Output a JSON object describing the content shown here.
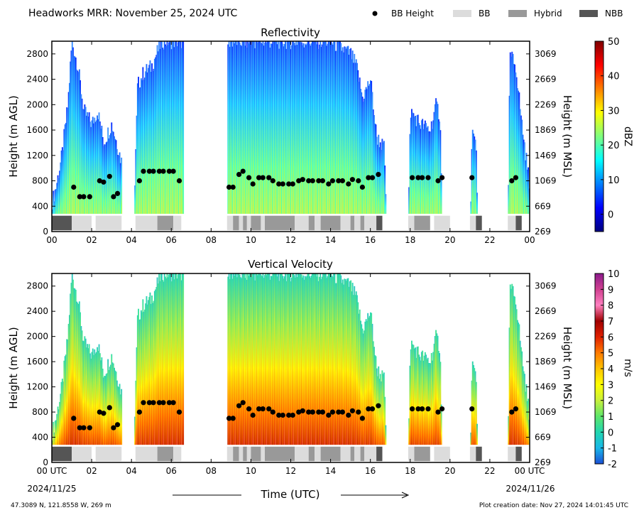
{
  "figure": {
    "title": "Headworks MRR:  November 25, 2024 UTC",
    "legend": [
      {
        "label": "BB Height",
        "kind": "marker",
        "color": "#000000"
      },
      {
        "label": "BB",
        "kind": "patch",
        "color": "#dcdcdc"
      },
      {
        "label": "Hybrid",
        "kind": "patch",
        "color": "#999999"
      },
      {
        "label": "NBB",
        "kind": "patch",
        "color": "#555555"
      }
    ],
    "xlabel": "Time (UTC)",
    "date_start": "2024/11/25",
    "date_end": "2024/11/26",
    "location": "47.3089 N, 121.8558 W, 269 m",
    "creation": "Plot creation date: Nov 27, 2024 14:01:45 UTC"
  },
  "chart_data": [
    {
      "type": "heatmap",
      "title": "Reflectivity",
      "ylabel": "Height (m AGL)",
      "ylabel_right": "Height (m MSL)",
      "colorbar_label": "dBZ",
      "colorbar_ticks": [
        "0",
        "10",
        "20",
        "30",
        "40",
        "50"
      ],
      "colorbar_range": [
        -5,
        50
      ],
      "colormap": [
        "#00007f",
        "#0000ff",
        "#007fff",
        "#00ffff",
        "#7fff7f",
        "#ffff00",
        "#ff7f00",
        "#ff0000",
        "#7f0000"
      ],
      "xlim": [
        0,
        24
      ],
      "ylim": [
        0,
        3000
      ],
      "xticks": [
        "00",
        "02",
        "04",
        "06",
        "08",
        "10",
        "12",
        "14",
        "16",
        "18",
        "20",
        "22",
        "00"
      ],
      "yticks": [
        "0",
        "400",
        "800",
        "1200",
        "1600",
        "2000",
        "2400",
        "2800"
      ],
      "yticks_right": [
        "269",
        "669",
        "1069",
        "1469",
        "1869",
        "2269",
        "2669",
        "3069"
      ]
    },
    {
      "type": "heatmap",
      "title": "Vertical Velocity",
      "ylabel": "Height (m AGL)",
      "ylabel_right": "Height (m MSL)",
      "colorbar_label": "m/s",
      "colorbar_ticks": [
        "-2",
        "-1",
        "0",
        "1",
        "2",
        "3",
        "4",
        "5",
        "6",
        "7",
        "8",
        "9",
        "10"
      ],
      "colorbar_range": [
        -2,
        10
      ],
      "colormap": [
        "#1a4fd6",
        "#19b7e8",
        "#22d6b0",
        "#5ee66a",
        "#c8f03c",
        "#ffff00",
        "#ffc400",
        "#ff7a00",
        "#e02000",
        "#a00000",
        "#ff80c0",
        "#d04090",
        "#8b1a8b"
      ],
      "xlim": [
        0,
        24
      ],
      "ylim": [
        0,
        3000
      ],
      "xticks": [
        "00 UTC",
        "02",
        "04",
        "06",
        "08",
        "10",
        "12",
        "14",
        "16",
        "18",
        "20",
        "22",
        "00 UTC"
      ],
      "yticks": [
        "0",
        "400",
        "800",
        "1200",
        "1600",
        "2000",
        "2400",
        "2800"
      ],
      "yticks_right": [
        "269",
        "669",
        "1069",
        "1469",
        "1869",
        "2269",
        "2669",
        "3069"
      ]
    }
  ],
  "data": {
    "echo_tops": [
      [
        0.0,
        450
      ],
      [
        0.2,
        700
      ],
      [
        0.5,
        1200
      ],
      [
        0.8,
        2000
      ],
      [
        1.0,
        3000
      ],
      [
        1.3,
        2600
      ],
      [
        1.6,
        1900
      ],
      [
        2.0,
        1700
      ],
      [
        2.3,
        1900
      ],
      [
        2.6,
        1400
      ],
      [
        3.0,
        1700
      ],
      [
        3.5,
        1100
      ],
      [
        3.6,
        0
      ],
      [
        4.1,
        0
      ],
      [
        4.3,
        2300
      ],
      [
        4.6,
        2500
      ],
      [
        5.0,
        2600
      ],
      [
        5.5,
        3000
      ],
      [
        6.5,
        3000
      ],
      [
        7.0,
        3000
      ],
      [
        7.5,
        3000
      ],
      [
        8.0,
        3000
      ],
      [
        8.5,
        3000
      ],
      [
        9.0,
        3000
      ],
      [
        10.0,
        3000
      ],
      [
        11.0,
        3000
      ],
      [
        12.0,
        3000
      ],
      [
        13.0,
        3000
      ],
      [
        14.0,
        3000
      ],
      [
        15.0,
        2800
      ],
      [
        15.3,
        2600
      ],
      [
        15.6,
        2100
      ],
      [
        16.0,
        2400
      ],
      [
        16.3,
        1500
      ],
      [
        16.7,
        1300
      ],
      [
        16.8,
        0
      ],
      [
        17.9,
        0
      ],
      [
        18.0,
        1900
      ],
      [
        18.5,
        1700
      ],
      [
        19.0,
        1600
      ],
      [
        19.3,
        2000
      ],
      [
        19.5,
        1800
      ],
      [
        19.6,
        0
      ],
      [
        21.0,
        0
      ],
      [
        21.1,
        1600
      ],
      [
        21.3,
        1300
      ],
      [
        21.4,
        0
      ],
      [
        22.9,
        0
      ],
      [
        23.0,
        2800
      ],
      [
        23.3,
        2600
      ],
      [
        23.6,
        1700
      ],
      [
        24.0,
        700
      ]
    ],
    "gaps": [
      [
        3.5,
        4.1
      ],
      [
        6.6,
        8.8
      ],
      [
        16.8,
        17.9
      ],
      [
        19.6,
        21.0
      ],
      [
        21.4,
        22.9
      ]
    ],
    "bb_height": [
      [
        1.1,
        700
      ],
      [
        1.4,
        550
      ],
      [
        1.6,
        550
      ],
      [
        1.9,
        550
      ],
      [
        2.4,
        800
      ],
      [
        2.6,
        780
      ],
      [
        2.9,
        870
      ],
      [
        3.1,
        550
      ],
      [
        3.3,
        600
      ],
      [
        4.4,
        800
      ],
      [
        4.6,
        950
      ],
      [
        4.9,
        950
      ],
      [
        5.1,
        950
      ],
      [
        5.4,
        950
      ],
      [
        5.6,
        950
      ],
      [
        5.9,
        950
      ],
      [
        6.1,
        950
      ],
      [
        6.4,
        800
      ],
      [
        8.9,
        700
      ],
      [
        9.1,
        700
      ],
      [
        9.4,
        900
      ],
      [
        9.6,
        950
      ],
      [
        9.9,
        850
      ],
      [
        10.1,
        750
      ],
      [
        10.4,
        850
      ],
      [
        10.6,
        850
      ],
      [
        10.9,
        850
      ],
      [
        11.1,
        800
      ],
      [
        11.4,
        750
      ],
      [
        11.6,
        750
      ],
      [
        11.9,
        750
      ],
      [
        12.1,
        750
      ],
      [
        12.4,
        800
      ],
      [
        12.6,
        820
      ],
      [
        12.9,
        800
      ],
      [
        13.1,
        800
      ],
      [
        13.4,
        800
      ],
      [
        13.6,
        800
      ],
      [
        13.9,
        750
      ],
      [
        14.1,
        800
      ],
      [
        14.4,
        800
      ],
      [
        14.6,
        800
      ],
      [
        14.9,
        750
      ],
      [
        15.1,
        820
      ],
      [
        15.4,
        800
      ],
      [
        15.6,
        700
      ],
      [
        15.9,
        850
      ],
      [
        16.1,
        850
      ],
      [
        16.4,
        900
      ],
      [
        18.1,
        850
      ],
      [
        18.4,
        850
      ],
      [
        18.6,
        850
      ],
      [
        18.9,
        850
      ],
      [
        19.4,
        800
      ],
      [
        19.6,
        850
      ],
      [
        21.1,
        850
      ],
      [
        23.1,
        800
      ],
      [
        23.3,
        850
      ]
    ],
    "bb_type": [
      [
        0.0,
        1.0,
        "NBB"
      ],
      [
        1.0,
        2.0,
        "BB"
      ],
      [
        2.2,
        3.5,
        "BB"
      ],
      [
        4.2,
        5.3,
        "BB"
      ],
      [
        5.3,
        6.1,
        "Hybrid"
      ],
      [
        6.1,
        6.5,
        "BB"
      ],
      [
        8.8,
        9.1,
        "BB"
      ],
      [
        9.1,
        9.4,
        "Hybrid"
      ],
      [
        9.4,
        9.6,
        "BB"
      ],
      [
        9.6,
        9.8,
        "Hybrid"
      ],
      [
        9.8,
        10.0,
        "BB"
      ],
      [
        10.0,
        10.5,
        "Hybrid"
      ],
      [
        10.5,
        10.7,
        "BB"
      ],
      [
        10.7,
        12.2,
        "Hybrid"
      ],
      [
        12.2,
        12.9,
        "BB"
      ],
      [
        12.9,
        13.2,
        "Hybrid"
      ],
      [
        13.2,
        13.5,
        "BB"
      ],
      [
        13.5,
        14.5,
        "Hybrid"
      ],
      [
        14.5,
        15.0,
        "BB"
      ],
      [
        15.0,
        15.2,
        "Hybrid"
      ],
      [
        15.2,
        15.5,
        "BB"
      ],
      [
        15.5,
        15.7,
        "Hybrid"
      ],
      [
        15.7,
        16.3,
        "BB"
      ],
      [
        16.3,
        16.6,
        "NBB"
      ],
      [
        17.9,
        18.2,
        "BB"
      ],
      [
        18.2,
        19.0,
        "Hybrid"
      ],
      [
        19.2,
        20.0,
        "BB"
      ],
      [
        21.0,
        21.3,
        "BB"
      ],
      [
        21.3,
        21.6,
        "NBB"
      ],
      [
        22.9,
        23.3,
        "BB"
      ],
      [
        23.3,
        23.6,
        "NBB"
      ]
    ]
  }
}
